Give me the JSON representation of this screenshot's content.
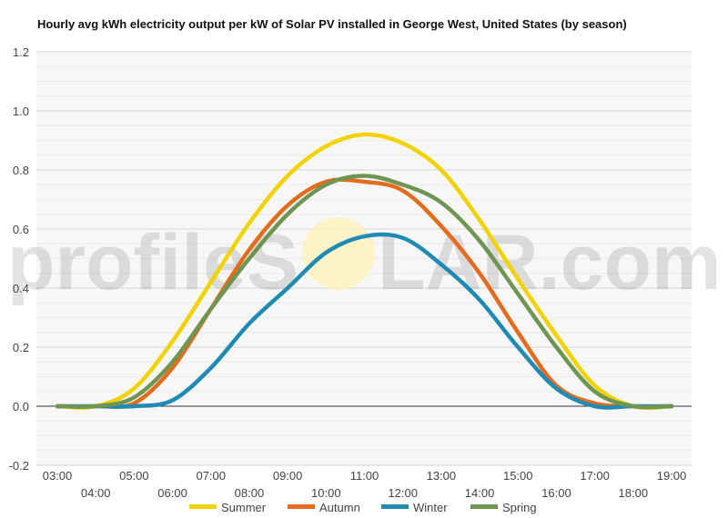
{
  "watermark": {
    "left": "profileS",
    "right": "LAR.com"
  },
  "chart_data": {
    "type": "line",
    "title": "Hourly avg kWh electricity output per kW of Solar PV installed in George West, United States (by season)",
    "xlabel": "",
    "ylabel": "",
    "ylim": [
      -0.2,
      1.2
    ],
    "y_ticks": [
      "1.2",
      "1.0",
      "0.8",
      "0.6",
      "0.4",
      "0.2",
      "0.0",
      "-0.2"
    ],
    "x_tick_labels": [
      "03:00",
      "04:00",
      "05:00",
      "06:00",
      "07:00",
      "08:00",
      "09:00",
      "10:00",
      "11:00",
      "12:00",
      "13:00",
      "14:00",
      "15:00",
      "16:00",
      "17:00",
      "18:00",
      "19:00"
    ],
    "grid": true,
    "legend_position": "bottom",
    "series": [
      {
        "name": "Summer",
        "color": "#f2d200",
        "values": [
          0.0,
          0.0,
          0.06,
          0.22,
          0.42,
          0.62,
          0.78,
          0.88,
          0.92,
          0.89,
          0.8,
          0.63,
          0.43,
          0.24,
          0.07,
          0.0,
          0.0
        ]
      },
      {
        "name": "Autumn",
        "color": "#e36c1d",
        "values": [
          0.0,
          0.0,
          0.01,
          0.13,
          0.33,
          0.53,
          0.68,
          0.76,
          0.76,
          0.73,
          0.61,
          0.45,
          0.25,
          0.07,
          0.01,
          0.0,
          0.0
        ]
      },
      {
        "name": "Winter",
        "color": "#1f8bb5",
        "values": [
          0.0,
          0.0,
          0.0,
          0.02,
          0.13,
          0.28,
          0.4,
          0.52,
          0.575,
          0.57,
          0.48,
          0.36,
          0.2,
          0.06,
          0.0,
          0.0,
          0.0
        ]
      },
      {
        "name": "Spring",
        "color": "#6e9652",
        "values": [
          0.0,
          0.0,
          0.03,
          0.15,
          0.33,
          0.5,
          0.65,
          0.75,
          0.78,
          0.75,
          0.69,
          0.56,
          0.38,
          0.2,
          0.05,
          0.0,
          0.0
        ]
      }
    ]
  }
}
